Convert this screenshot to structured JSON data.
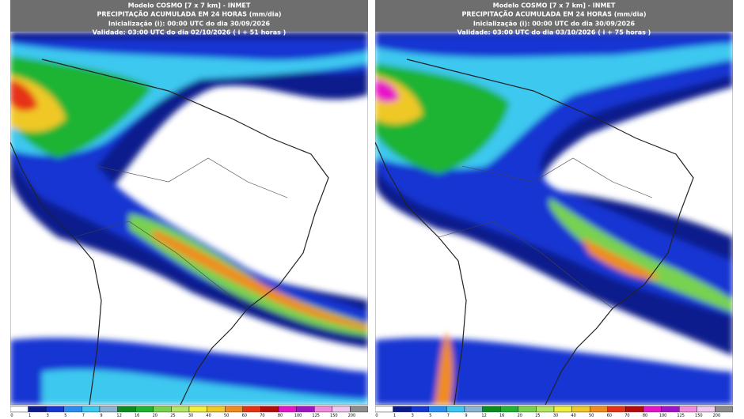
{
  "panels": [
    {
      "model": "Modelo COSMO [7 x 7 km] - INMET",
      "title": "PRECIPITAÇÃO ACUMULADA EM 24 HORAS (mm/dia)",
      "init": "Inicialização (i): 00:00 UTC do dia 30/09/2026",
      "valid": "Validade: 03:00 UTC do dia 02/10/2026 ( i + 51 horas )"
    },
    {
      "model": "Modelo COSMO [7 x 7 km] - INMET",
      "title": "PRECIPITAÇÃO ACUMULADA EM 24 HORAS (mm/dia)",
      "init": "Inicialização (i): 00:00 UTC do dia 30/09/2026",
      "valid": "Validade: 03:00 UTC do dia 03/10/2026 ( i + 75 horas )"
    }
  ],
  "colorbar": {
    "levels": [
      0,
      1,
      3,
      5,
      7,
      9,
      12,
      16,
      20,
      25,
      30,
      40,
      50,
      60,
      70,
      80,
      100,
      125,
      150,
      200
    ],
    "colors": [
      "#ffffff",
      "#0a1a8c",
      "#1436d2",
      "#2a8cf0",
      "#3cc8f0",
      "#8cb4d2",
      "#0a8c1e",
      "#1eb432",
      "#78d250",
      "#b4e664",
      "#f0f03c",
      "#f0c828",
      "#f08c1e",
      "#e63214",
      "#b40a0a",
      "#e614c8",
      "#a014c8",
      "#f08cdc",
      "#f0c8f0",
      "#8c8c8c"
    ]
  }
}
